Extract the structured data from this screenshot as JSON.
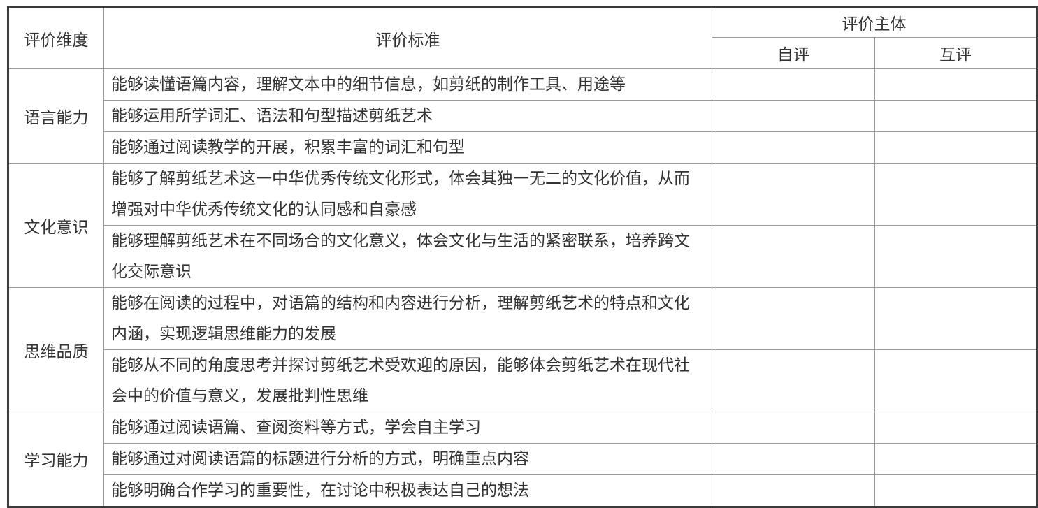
{
  "headers": {
    "dimension": "评价维度",
    "criteria": "评价标准",
    "subject": "评价主体",
    "self": "自评",
    "peer": "互评"
  },
  "groups": [
    {
      "dimension": "语言能力",
      "criteria": [
        "能够读懂语篇内容，理解文本中的细节信息，如剪纸的制作工具、用途等",
        "能够运用所学词汇、语法和句型描述剪纸艺术",
        "能够通过阅读教学的开展，积累丰富的词汇和句型"
      ]
    },
    {
      "dimension": "文化意识",
      "criteria": [
        "能够了解剪纸艺术这一中华优秀传统文化形式，体会其独一无二的文化价值，从而增强对中华优秀传统文化的认同感和自豪感",
        "能够理解剪纸艺术在不同场合的文化意义，体会文化与生活的紧密联系，培养跨文化交际意识"
      ]
    },
    {
      "dimension": "思维品质",
      "criteria": [
        "能够在阅读的过程中，对语篇的结构和内容进行分析，理解剪纸艺术的特点和文化内涵，实现逻辑思维能力的发展",
        "能够从不同的角度思考并探讨剪纸艺术受欢迎的原因，能够体会剪纸艺术在现代社会中的价值与意义，发展批判性思维"
      ]
    },
    {
      "dimension": "学习能力",
      "criteria": [
        "能够通过阅读语篇、查阅资料等方式，学会自主学习",
        "能够通过对阅读语篇的标题进行分析的方式，明确重点内容",
        "能够明确合作学习的重要性，在讨论中积极表达自己的想法"
      ]
    }
  ]
}
